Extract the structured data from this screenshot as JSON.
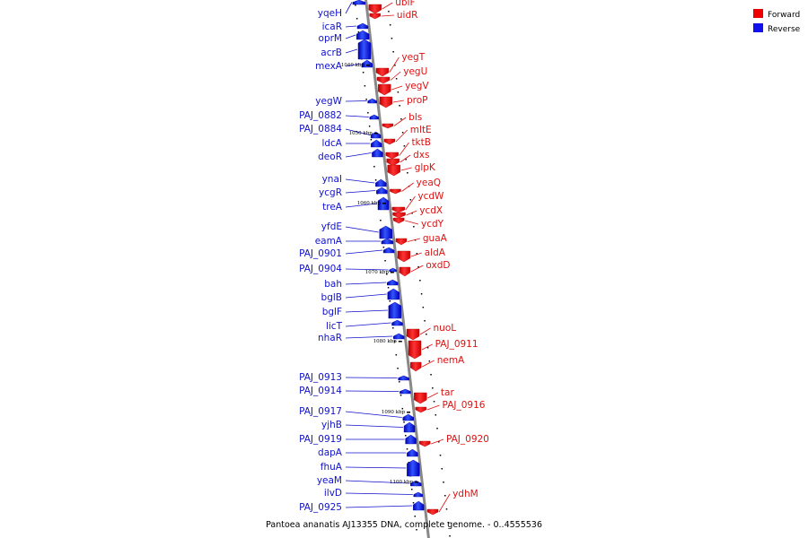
{
  "caption": "Pantoea ananatis AJ13355 DNA, complete genome. - 0..4555536",
  "legend": [
    {
      "label": "Forward",
      "color": "#ee0000"
    },
    {
      "label": "Reverse",
      "color": "#1111ee"
    }
  ],
  "kbp_labels": [
    "1040 kbp",
    "1050 kbp",
    "1060 kbp",
    "1070 kbp",
    "1080 kbp",
    "1090 kbp",
    "1100 kbp"
  ],
  "reverse_genes": [
    "yqeH",
    "icaR",
    "oprM",
    "acrB",
    "mexA",
    "yegW",
    "PAJ_0882",
    "PAJ_0884",
    "ldcA",
    "deoR",
    "ynaI",
    "ycgR",
    "treA",
    "yfdE",
    "eamA",
    "PAJ_0901",
    "PAJ_0904",
    "bah",
    "bglB",
    "bglF",
    "licT",
    "nhaR",
    "PAJ_0913",
    "PAJ_0914",
    "PAJ_0917",
    "yjhB",
    "PAJ_0919",
    "dapA",
    "fhuA",
    "yeaM",
    "ilvD",
    "PAJ_0925"
  ],
  "forward_genes": [
    "ubiF",
    "uidR",
    "yegT",
    "yegU",
    "yegV",
    "proP",
    "bls",
    "mltE",
    "tktB",
    "dxs",
    "glpK",
    "yeaQ",
    "ycdW",
    "ycdX",
    "ycdY",
    "guaA",
    "aldA",
    "oxdD",
    "nuoL",
    "PAJ_0911",
    "nemA",
    "tar",
    "PAJ_0916",
    "PAJ_0920",
    "ydhM"
  ]
}
